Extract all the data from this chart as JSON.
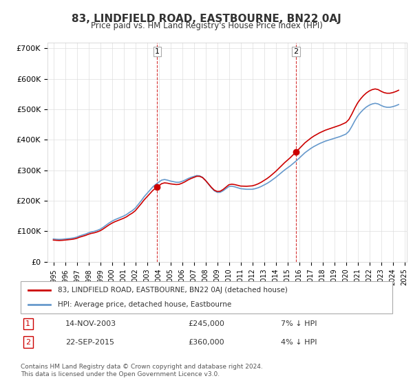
{
  "title": "83, LINDFIELD ROAD, EASTBOURNE, BN22 0AJ",
  "subtitle": "Price paid vs. HM Land Registry's House Price Index (HPI)",
  "ylabel_ticks": [
    "£0",
    "£100K",
    "£200K",
    "£300K",
    "£400K",
    "£500K",
    "£600K",
    "£700K"
  ],
  "ytick_values": [
    0,
    100000,
    200000,
    300000,
    400000,
    500000,
    600000,
    700000
  ],
  "ylim": [
    0,
    720000
  ],
  "hpi_years": [
    1995.0,
    1995.25,
    1995.5,
    1995.75,
    1996.0,
    1996.25,
    1996.5,
    1996.75,
    1997.0,
    1997.25,
    1997.5,
    1997.75,
    1998.0,
    1998.25,
    1998.5,
    1998.75,
    1999.0,
    1999.25,
    1999.5,
    1999.75,
    2000.0,
    2000.25,
    2000.5,
    2000.75,
    2001.0,
    2001.25,
    2001.5,
    2001.75,
    2002.0,
    2002.25,
    2002.5,
    2002.75,
    2003.0,
    2003.25,
    2003.5,
    2003.75,
    2004.0,
    2004.25,
    2004.5,
    2004.75,
    2005.0,
    2005.25,
    2005.5,
    2005.75,
    2006.0,
    2006.25,
    2006.5,
    2006.75,
    2007.0,
    2007.25,
    2007.5,
    2007.75,
    2008.0,
    2008.25,
    2008.5,
    2008.75,
    2009.0,
    2009.25,
    2009.5,
    2009.75,
    2010.0,
    2010.25,
    2010.5,
    2010.75,
    2011.0,
    2011.25,
    2011.5,
    2011.75,
    2012.0,
    2012.25,
    2012.5,
    2012.75,
    2013.0,
    2013.25,
    2013.5,
    2013.75,
    2014.0,
    2014.25,
    2014.5,
    2014.75,
    2015.0,
    2015.25,
    2015.5,
    2015.75,
    2016.0,
    2016.25,
    2016.5,
    2016.75,
    2017.0,
    2017.25,
    2017.5,
    2017.75,
    2018.0,
    2018.25,
    2018.5,
    2018.75,
    2019.0,
    2019.25,
    2019.5,
    2019.75,
    2020.0,
    2020.25,
    2020.5,
    2020.75,
    2021.0,
    2021.25,
    2021.5,
    2021.75,
    2022.0,
    2022.25,
    2022.5,
    2022.75,
    2023.0,
    2023.25,
    2023.5,
    2023.75,
    2024.0,
    2024.25,
    2024.5
  ],
  "hpi_values": [
    75000,
    74000,
    73500,
    74000,
    75000,
    76000,
    77000,
    78500,
    81000,
    85000,
    88000,
    91000,
    95000,
    98000,
    100000,
    103000,
    107000,
    113000,
    120000,
    127000,
    133000,
    138000,
    142000,
    146000,
    150000,
    155000,
    162000,
    168000,
    176000,
    188000,
    200000,
    213000,
    224000,
    235000,
    246000,
    254000,
    261000,
    268000,
    270000,
    268000,
    265000,
    263000,
    261000,
    261000,
    264000,
    268000,
    273000,
    277000,
    280000,
    283000,
    282000,
    277000,
    267000,
    255000,
    243000,
    233000,
    228000,
    228000,
    233000,
    240000,
    247000,
    248000,
    246000,
    243000,
    240000,
    239000,
    238000,
    238000,
    238000,
    240000,
    243000,
    247000,
    252000,
    257000,
    263000,
    270000,
    277000,
    285000,
    293000,
    301000,
    308000,
    315000,
    323000,
    331000,
    340000,
    349000,
    358000,
    365000,
    372000,
    378000,
    383000,
    388000,
    392000,
    396000,
    399000,
    402000,
    405000,
    408000,
    411000,
    415000,
    419000,
    428000,
    444000,
    462000,
    478000,
    490000,
    500000,
    508000,
    514000,
    518000,
    520000,
    518000,
    513000,
    509000,
    507000,
    507000,
    509000,
    512000,
    516000
  ],
  "price_years": [
    2003.87,
    2015.72
  ],
  "price_values": [
    245000,
    360000
  ],
  "marker_labels": [
    "1",
    "2"
  ],
  "vline_years": [
    2003.87,
    2015.72
  ],
  "legend_line1": "83, LINDFIELD ROAD, EASTBOURNE, BN22 0AJ (detached house)",
  "legend_line2": "HPI: Average price, detached house, Eastbourne",
  "table_data": [
    [
      "1",
      "14-NOV-2003",
      "£245,000",
      "7% ↓ HPI"
    ],
    [
      "2",
      "22-SEP-2015",
      "£360,000",
      "4% ↓ HPI"
    ]
  ],
  "footer": "Contains HM Land Registry data © Crown copyright and database right 2024.\nThis data is licensed under the Open Government Licence v3.0.",
  "red_color": "#cc0000",
  "blue_color": "#6699cc",
  "vline_color": "#cc0000",
  "bg_color": "#ffffff",
  "grid_color": "#dddddd"
}
